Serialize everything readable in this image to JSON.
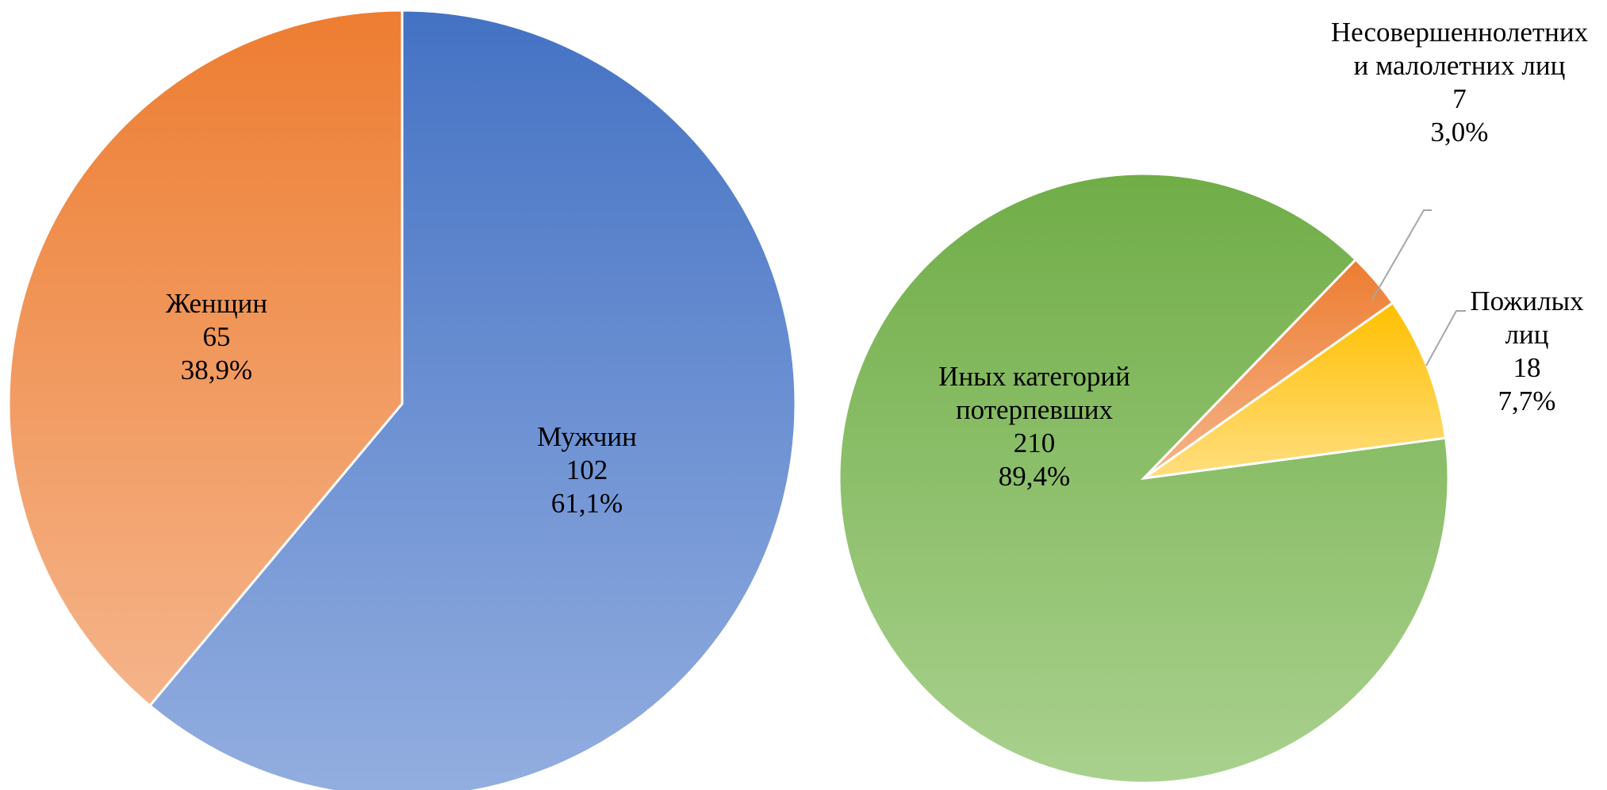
{
  "chart_data": [
    {
      "type": "pie",
      "slices": [
        {
          "label": "Мужчин",
          "value": 102,
          "percent_label": "61,1%",
          "color": "#4472C4",
          "color_light": "#93AEE0"
        },
        {
          "label": "Женщин",
          "value": 65,
          "percent_label": "38,9%",
          "color": "#ED7D31",
          "color_light": "#F5B48A"
        }
      ]
    },
    {
      "type": "pie",
      "slices": [
        {
          "label": "Несовершеннолетних и малолетних лиц",
          "label_lines": [
            "Несовершеннолетних",
            "и малолетних лиц"
          ],
          "value": 7,
          "percent_label": "3,0%",
          "color": "#ED7D31",
          "color_light": "#F5B48A"
        },
        {
          "label": "Пожилых лиц",
          "label_lines": [
            "Пожилых",
            "лиц"
          ],
          "value": 18,
          "percent_label": "7,7%",
          "color": "#FFC000",
          "color_light": "#FFDE80"
        },
        {
          "label": "Иных категорий потерпевших",
          "label_lines": [
            "Иных категорий",
            "потерпевших"
          ],
          "value": 210,
          "percent_label": "89,4%",
          "color": "#70AD47",
          "color_light": "#A9D18E"
        }
      ]
    }
  ]
}
